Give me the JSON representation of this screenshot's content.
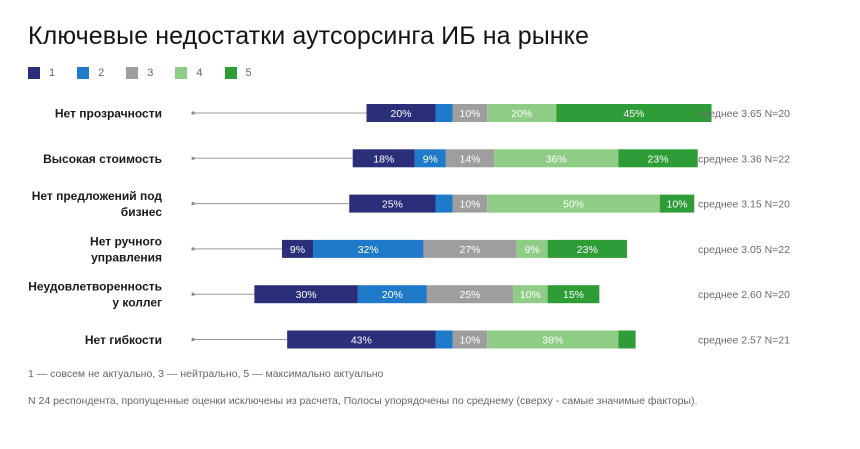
{
  "title": "Ключевые недостатки аутсорсинга ИБ на рынке",
  "legend": [
    {
      "label": "1",
      "color": "#2b2f7a"
    },
    {
      "label": "2",
      "color": "#1f7bc9"
    },
    {
      "label": "3",
      "color": "#9e9e9e"
    },
    {
      "label": "4",
      "color": "#8fcd86"
    },
    {
      "label": "5",
      "color": "#2e9d38"
    }
  ],
  "notes": {
    "scale": "1 — совсем не актуально, 3 — нейтрально,  5 — максимально актуально",
    "sample": "N 24 респондента, пропущенные оценки исключены из расчета, Полосы упорядочены по среднему (сверху - самые значимые факторы)."
  },
  "chart_data": {
    "type": "bar",
    "orientation": "horizontal",
    "stacked": "diverging",
    "series_names": [
      "1",
      "2",
      "3",
      "4",
      "5"
    ],
    "colors": [
      "#2b2f7a",
      "#1f7bc9",
      "#9e9e9e",
      "#8fcd86",
      "#2e9d38"
    ],
    "rows": [
      {
        "label": [
          "Нет прозрачности"
        ],
        "values": [
          20,
          5,
          10,
          20,
          45
        ],
        "labels": [
          "20%",
          "",
          "10%",
          "20%",
          "45%"
        ],
        "summary": "среднее 3.65 N=20"
      },
      {
        "label": [
          "Высокая стоимость"
        ],
        "values": [
          18,
          9,
          14,
          36,
          23
        ],
        "labels": [
          "18%",
          "9%",
          "14%",
          "36%",
          "23%"
        ],
        "summary": "среднее 3.36 N=22"
      },
      {
        "label": [
          "Нет предложений под",
          "бизнес"
        ],
        "values": [
          25,
          5,
          10,
          50,
          10
        ],
        "labels": [
          "25%",
          "",
          "10%",
          "50%",
          "10%"
        ],
        "summary": "среднее 3.15 N=20"
      },
      {
        "label": [
          "Нет ручного",
          "управления"
        ],
        "values": [
          9,
          32,
          27,
          9,
          23
        ],
        "labels": [
          "9%",
          "32%",
          "27%",
          "9%",
          "23%"
        ],
        "summary": "среднее 3.05 N=22"
      },
      {
        "label": [
          "Неудовлетворенность",
          "у коллег"
        ],
        "values": [
          30,
          20,
          25,
          10,
          15
        ],
        "labels": [
          "30%",
          "20%",
          "25%",
          "10%",
          "15%"
        ],
        "summary": "среднее 2.60 N=20"
      },
      {
        "label": [
          "Нет гибкости"
        ],
        "values": [
          43,
          5,
          10,
          38,
          5
        ],
        "labels": [
          "43%",
          "",
          "10%",
          "38%",
          ""
        ],
        "summary": "среднее 2.57 N=21"
      }
    ]
  }
}
